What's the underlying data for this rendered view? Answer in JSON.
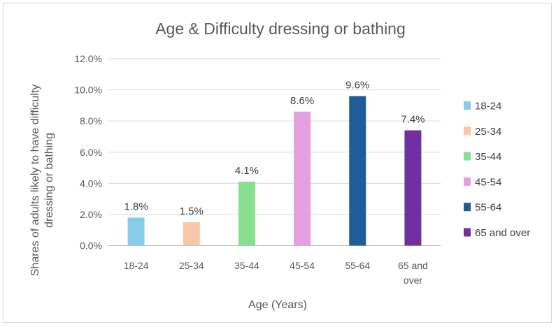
{
  "chart_data": {
    "type": "bar",
    "title": "Age & Difficulty dressing or bathing",
    "xlabel": "Age (Years)",
    "ylabel": [
      "Shares of adults likely to have difficulty",
      "dressing or bathing"
    ],
    "ylim": [
      0,
      12
    ],
    "yticks": [
      "0.0%",
      "2.0%",
      "4.0%",
      "6.0%",
      "8.0%",
      "10.0%",
      "12.0%"
    ],
    "categories": [
      [
        "18-24"
      ],
      [
        "25-34"
      ],
      [
        "35-44"
      ],
      [
        "45-54"
      ],
      [
        "55-64"
      ],
      [
        "65 and",
        "over"
      ]
    ],
    "values": [
      1.8,
      1.5,
      4.1,
      8.6,
      9.6,
      7.4
    ],
    "data_labels": [
      "1.8%",
      "1.5%",
      "4.1%",
      "8.6%",
      "9.6%",
      "7.4%"
    ],
    "colors": [
      "#87ceeb",
      "#f8c7a7",
      "#86e08f",
      "#e4a0e0",
      "#1f5c99",
      "#7030a0"
    ],
    "grid": true,
    "legend": {
      "position": "right",
      "entries": [
        "18-24",
        "25-34",
        "35-44",
        "45-54",
        "55-64",
        "65 and over"
      ]
    }
  }
}
